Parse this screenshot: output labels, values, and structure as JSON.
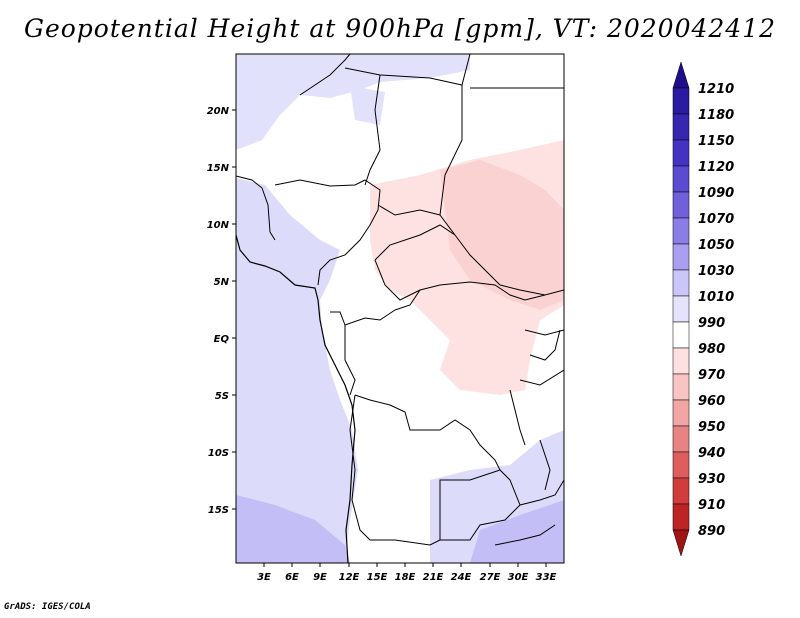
{
  "title": "Geopotential Height at 900hPa [gpm], VT: 2020042412",
  "credit": "GrADS: IGES/COLA",
  "map": {
    "y_ticks": [
      "20N",
      "15N",
      "10N",
      "5N",
      "EQ",
      "5S",
      "10S",
      "15S"
    ],
    "x_ticks": [
      "3E",
      "6E",
      "9E",
      "12E",
      "15E",
      "18E",
      "21E",
      "24E",
      "27E",
      "30E",
      "33E"
    ]
  },
  "colorbar": {
    "levels": [
      "1210",
      "1180",
      "1150",
      "1120",
      "1090",
      "1070",
      "1050",
      "1030",
      "1010",
      "990",
      "980",
      "970",
      "960",
      "950",
      "940",
      "930",
      "910",
      "890"
    ],
    "colors": [
      "#1d0f8c",
      "#2a1ba0",
      "#3626b0",
      "#4433c2",
      "#5a4bd0",
      "#7060dc",
      "#8a7de6",
      "#a89ff0",
      "#cac6f7",
      "#e4e3fb",
      "#ffffff",
      "#fde0df",
      "#f8c4c4",
      "#f1a5a5",
      "#e88383",
      "#de5e5e",
      "#d13d3d",
      "#bd2424",
      "#a01414"
    ]
  }
}
